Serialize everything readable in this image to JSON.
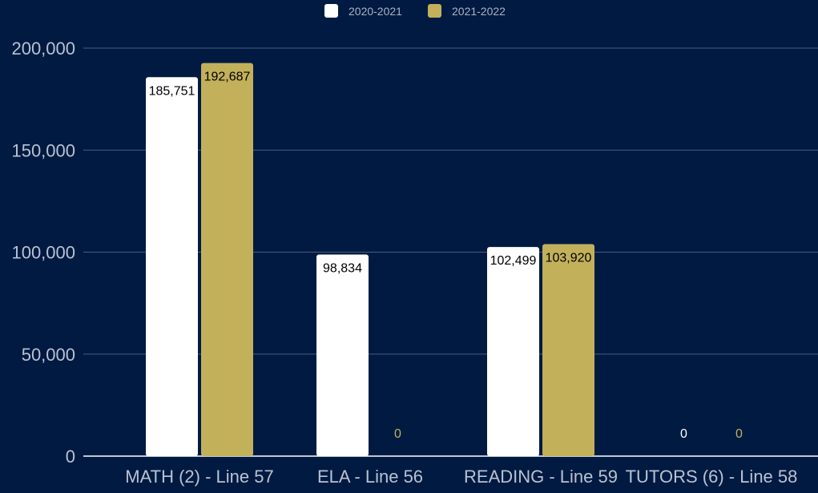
{
  "colors": {
    "background": "#001a42",
    "gridline": "#4a5d80",
    "axis_text": "#b9c2d1",
    "legend_text": "#aab3c4",
    "series_2020": "#ffffff",
    "series_2021": "#c2b05a",
    "label_on_bar": "#000000"
  },
  "chart_data": {
    "type": "bar",
    "title": "",
    "xlabel": "",
    "ylabel": "",
    "legend_position": "top-center",
    "grid": true,
    "ylim": [
      0,
      200000
    ],
    "yticks": [
      0,
      50000,
      100000,
      150000,
      200000
    ],
    "ytick_labels": [
      "0",
      "50,000",
      "100,000",
      "150,000",
      "200,000"
    ],
    "categories": [
      "MATH (2) - Line 57",
      "ELA - Line 56",
      "READING - Line 59",
      "TUTORS (6) - Line 58"
    ],
    "series": [
      {
        "name": "2020-2021",
        "color": "#ffffff",
        "values": [
          185751,
          98834,
          102499,
          0
        ],
        "labels": [
          "185,751",
          "98,834",
          "102,499",
          "0"
        ]
      },
      {
        "name": "2021-2022",
        "color": "#c2b05a",
        "values": [
          192687,
          0,
          103920,
          0
        ],
        "labels": [
          "192,687",
          "0",
          "103,920",
          "0"
        ]
      }
    ]
  }
}
